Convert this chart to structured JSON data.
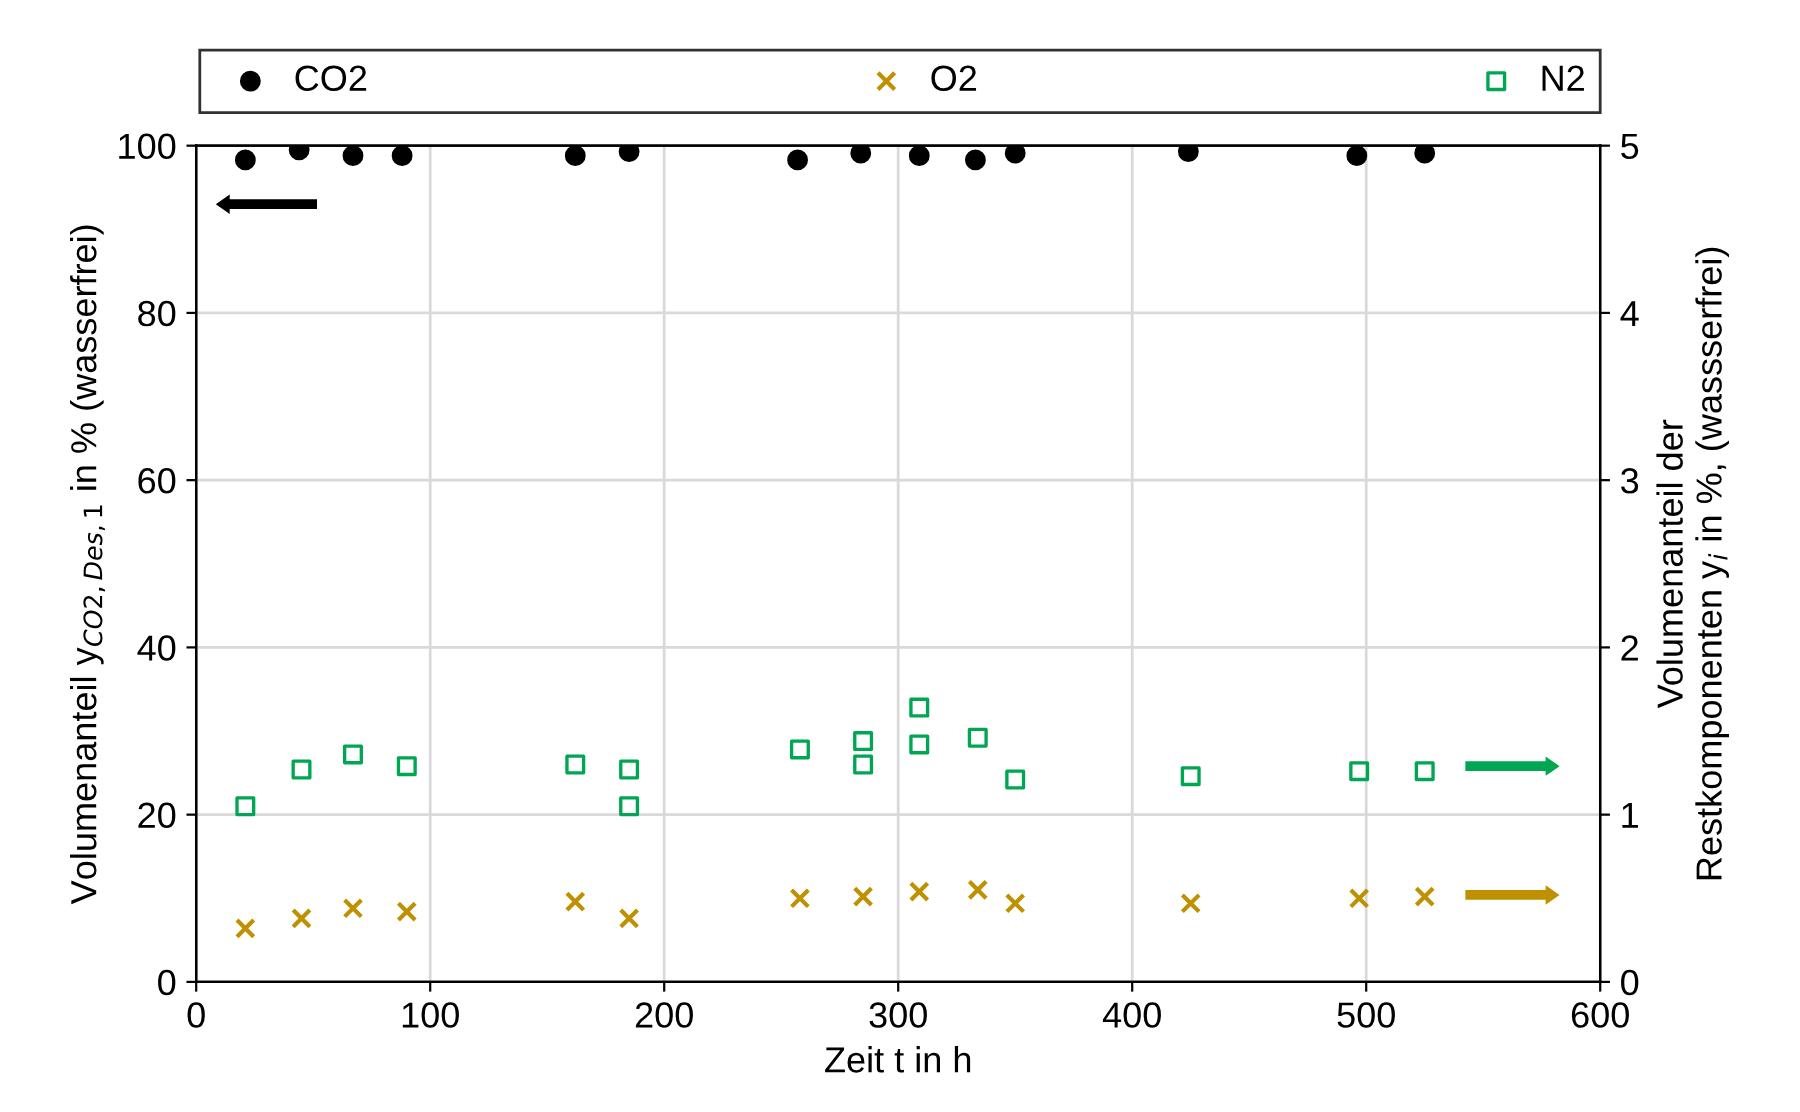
{
  "chart_data": {
    "type": "scatter",
    "xlabel": "Zeit t in h",
    "ylabel": "Volumenanteil y$_{CO2,Des,1}$ in % (wasserfrei)",
    "y2label": "Volumenanteil der\nRestkomponenten y$_{i}$ in %, (wassserfrei)",
    "xlim": [
      0,
      600
    ],
    "xticks": [
      0,
      100,
      200,
      300,
      400,
      500,
      600
    ],
    "ylim": [
      0,
      100
    ],
    "yticks": [
      0,
      20,
      40,
      60,
      80,
      100
    ],
    "y2lim": [
      0,
      5
    ],
    "y2ticks": [
      0,
      1,
      2,
      3,
      4,
      5
    ],
    "grid": true,
    "legend": "top",
    "series": [
      {
        "name": "CO2",
        "color": "#000000",
        "marker": "circle",
        "x": [
          21,
          44,
          67,
          88,
          162,
          185,
          257,
          284,
          309,
          333,
          350,
          424,
          496,
          525
        ],
        "values": [
          98.3,
          99.5,
          98.8,
          98.8,
          98.8,
          99.3,
          98.3,
          99.1,
          98.8,
          98.3,
          99.1,
          99.3,
          98.8,
          99.1
        ]
      },
      {
        "name": "O2",
        "color": "#bf9000",
        "marker": "cross",
        "axis": "y2",
        "x": [
          21,
          45,
          67,
          90,
          162,
          185,
          258,
          285,
          309,
          334,
          350,
          425,
          497,
          525
        ],
        "values": [
          0.32,
          0.38,
          0.44,
          0.42,
          0.48,
          0.38,
          0.5,
          0.51,
          0.54,
          0.55,
          0.47,
          0.47,
          0.5,
          0.51
        ]
      },
      {
        "name": "N2",
        "color": "#00a651",
        "marker": "square",
        "axis": "y2",
        "x": [
          21,
          45,
          67,
          90,
          162,
          185,
          185,
          258,
          285,
          285,
          309,
          309,
          334,
          350,
          425,
          497,
          525
        ],
        "values": [
          1.05,
          1.27,
          1.36,
          1.29,
          1.3,
          1.27,
          1.05,
          1.39,
          1.44,
          1.3,
          1.64,
          1.42,
          1.46,
          1.21,
          1.23,
          1.26,
          1.26
        ]
      }
    ]
  }
}
